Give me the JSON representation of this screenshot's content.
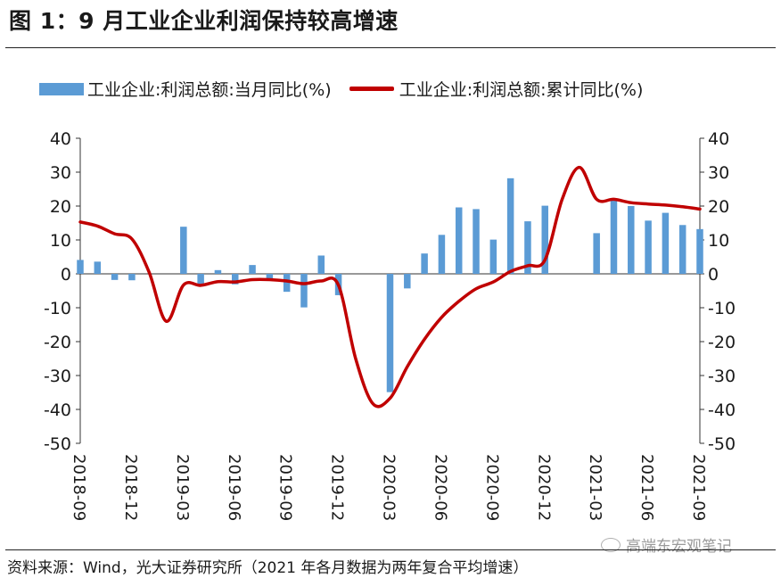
{
  "title": "图 1：9 月工业企业利润保持较高增速",
  "legend": {
    "bar_label": "工业企业:利润总额:当月同比(%)",
    "line_label": "工业企业:利润总额:累计同比(%)"
  },
  "source": "资料来源：Wind，光大证券研究所（2021 年各月数据为两年复合平均增速）",
  "watermark": "高端东宏观笔记",
  "colors": {
    "bar": "#5b9bd5",
    "line": "#c00000"
  },
  "chart_data": {
    "type": "bar+line",
    "title": "",
    "xlabel": "",
    "ylabel": "",
    "ylim": [
      -50,
      40
    ],
    "yticks": [
      40,
      30,
      20,
      10,
      0,
      -10,
      -20,
      -30,
      -40,
      -50
    ],
    "ytick_labels": [
      "40",
      "30",
      "20",
      "10",
      "0",
      "-10",
      "-20",
      "-30",
      "-40",
      "-50"
    ],
    "x_tick_labels": [
      "2018-09",
      "2018-12",
      "2019-03",
      "2019-06",
      "2019-09",
      "2019-12",
      "2020-03",
      "2020-06",
      "2020-09",
      "2020-12",
      "2021-03",
      "2021-06",
      "2021-09"
    ],
    "grid": false,
    "legend_position": "top",
    "series": [
      {
        "name": "工业企业:利润总额:当月同比(%)",
        "type": "bar",
        "axis": "left",
        "x": [
          "2018-09",
          "2018-10",
          "2018-11",
          "2018-12",
          "2019-01",
          "2019-02",
          "2019-03",
          "2019-04",
          "2019-05",
          "2019-06",
          "2019-07",
          "2019-08",
          "2019-09",
          "2019-10",
          "2019-11",
          "2019-12",
          "2020-01",
          "2020-02",
          "2020-03",
          "2020-04",
          "2020-05",
          "2020-06",
          "2020-07",
          "2020-08",
          "2020-09",
          "2020-10",
          "2020-11",
          "2020-12",
          "2021-01",
          "2021-02",
          "2021-03",
          "2021-04",
          "2021-05",
          "2021-06",
          "2021-07",
          "2021-08",
          "2021-09"
        ],
        "values": [
          4.1,
          3.6,
          -1.8,
          -1.9,
          null,
          null,
          13.9,
          -3.7,
          1.1,
          -3.1,
          2.6,
          -2.0,
          -5.3,
          -9.9,
          5.4,
          -6.3,
          null,
          null,
          -34.9,
          -4.3,
          6.0,
          11.5,
          19.6,
          19.1,
          10.1,
          28.2,
          15.5,
          20.1,
          null,
          null,
          12.0,
          22.1,
          20.0,
          15.7,
          18.0,
          14.4,
          13.2
        ]
      },
      {
        "name": "工业企业:利润总额:累计同比(%)",
        "type": "line",
        "axis": "right",
        "x": [
          "2018-09",
          "2018-10",
          "2018-11",
          "2018-12",
          "2019-01",
          "2019-02",
          "2019-03",
          "2019-04",
          "2019-05",
          "2019-06",
          "2019-07",
          "2019-08",
          "2019-09",
          "2019-10",
          "2019-11",
          "2019-12",
          "2020-01",
          "2020-02",
          "2020-03",
          "2020-04",
          "2020-05",
          "2020-06",
          "2020-07",
          "2020-08",
          "2020-09",
          "2020-10",
          "2020-11",
          "2020-12",
          "2021-01",
          "2021-02",
          "2021-03",
          "2021-04",
          "2021-05",
          "2021-06",
          "2021-07",
          "2021-08",
          "2021-09"
        ],
        "values": [
          15.3,
          14.1,
          11.8,
          10.3,
          0.5,
          -14.0,
          -3.3,
          -3.4,
          -2.3,
          -2.4,
          -1.7,
          -1.7,
          -2.1,
          -2.9,
          -2.1,
          -3.3,
          -25.0,
          -38.3,
          -36.7,
          -27.4,
          -19.3,
          -12.8,
          -8.1,
          -4.4,
          -2.4,
          0.7,
          2.4,
          4.1,
          22.0,
          31.4,
          22.0,
          22.0,
          21.0,
          20.6,
          20.3,
          19.8,
          19.1
        ]
      }
    ]
  }
}
